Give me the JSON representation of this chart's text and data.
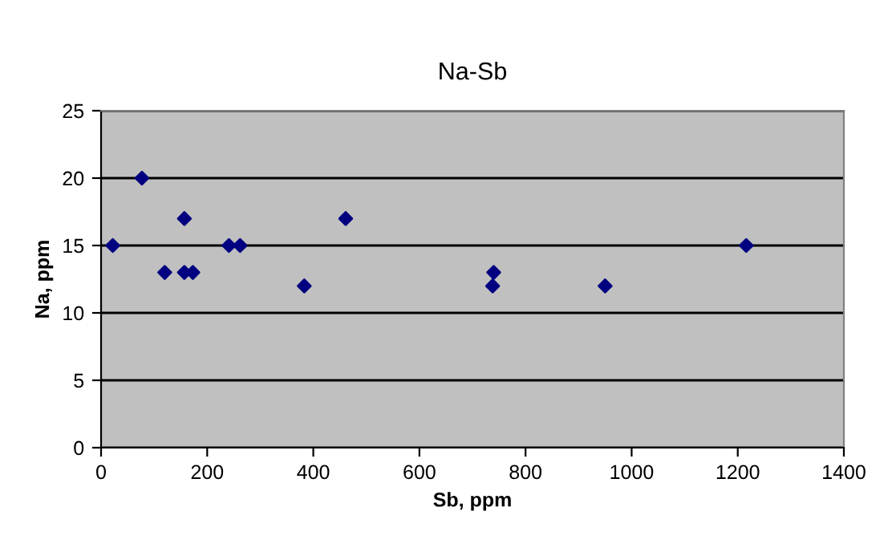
{
  "chart_data": {
    "type": "scatter",
    "title": "Na-Sb",
    "xlabel": "Sb, ppm",
    "ylabel": "Na, ppm",
    "x": [
      22,
      77,
      120,
      157,
      157,
      173,
      241,
      262,
      383,
      461,
      740,
      738,
      950,
      1216
    ],
    "series": [
      {
        "color": "#000080",
        "values": [
          15,
          20,
          13,
          17,
          13,
          13,
          15,
          15,
          12,
          17,
          13,
          12,
          12,
          15
        ]
      }
    ],
    "xlim": [
      0,
      1400
    ],
    "xticks": [
      0,
      200,
      400,
      600,
      800,
      1000,
      1200,
      1400
    ],
    "ylim": [
      0,
      25
    ],
    "yticks": [
      0,
      5,
      10,
      15,
      20,
      25
    ],
    "grid": "y",
    "marker": "diamond",
    "legend": false
  }
}
